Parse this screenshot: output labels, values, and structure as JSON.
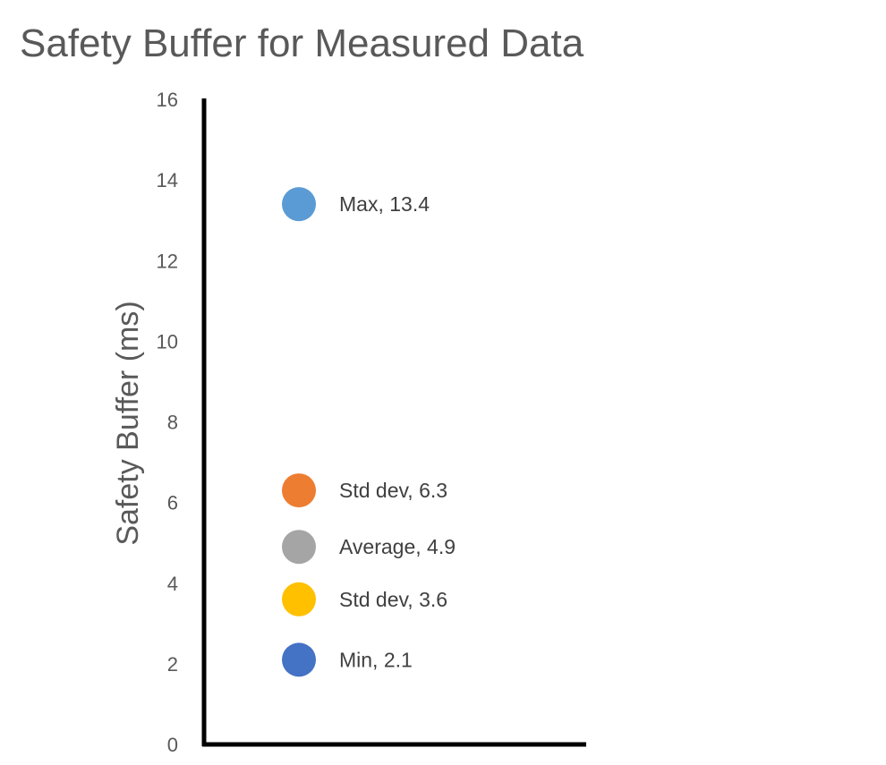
{
  "chart_data": {
    "type": "scatter",
    "title": "Safety Buffer for Measured Data",
    "xlabel": "",
    "ylabel": "Safety Buffer (ms)",
    "ylim": [
      0,
      16
    ],
    "yticks": [
      0,
      2,
      4,
      6,
      8,
      10,
      12,
      14,
      16
    ],
    "grid": false,
    "legend": "none",
    "points": [
      {
        "label": "Max, 13.4",
        "name": "Max",
        "y": 13.4,
        "color": "#5B9BD5"
      },
      {
        "label": "Std dev, 6.3",
        "name": "Std dev",
        "y": 6.3,
        "color": "#ED7D31"
      },
      {
        "label": "Average, 4.9",
        "name": "Average",
        "y": 4.9,
        "color": "#A5A5A5"
      },
      {
        "label": "Std dev, 3.6",
        "name": "Std dev",
        "y": 3.6,
        "color": "#FFC000"
      },
      {
        "label": "Min, 2.1",
        "name": "Min",
        "y": 2.1,
        "color": "#4472C4"
      }
    ]
  }
}
